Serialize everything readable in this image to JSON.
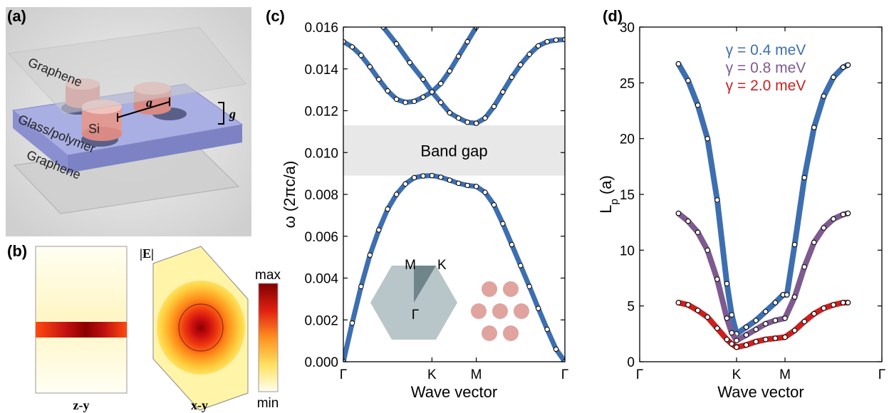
{
  "panels": {
    "a": {
      "label": "(a)",
      "layers": {
        "graphene_top": "Graphene",
        "pillar": "Si",
        "spacer": "Glass/polymer",
        "graphene_bottom": "Graphene",
        "period": "a",
        "gap": "g"
      },
      "colors": {
        "pillar": "#e7a49e",
        "spacer": "#9ea4dc",
        "graphene": "#c8c8c8"
      }
    },
    "b": {
      "label": "(b)",
      "field_label": "|E|",
      "left_view": "z-y",
      "right_view": "x-y",
      "colorbar_max": "max",
      "colorbar_min": "min"
    },
    "c": {
      "label": "(c)",
      "band_gap_text": "Band gap",
      "inset": {
        "bz_points": [
          "M",
          "K",
          "Γ"
        ]
      }
    },
    "d": {
      "label": "(d)"
    }
  },
  "chart_data": [
    {
      "type": "line",
      "panel": "c",
      "ylabel": "ω (2πc/a)",
      "xlabel": "Wave vector",
      "x_ticks": [
        "Γ",
        "K",
        "M",
        "Γ"
      ],
      "x_tick_positions": [
        0,
        1,
        1.5,
        2.5
      ],
      "xlim": [
        0,
        2.5
      ],
      "ylim": [
        0,
        0.016
      ],
      "y_ticks": [
        "0.000",
        "0.002",
        "0.004",
        "0.006",
        "0.008",
        "0.010",
        "0.012",
        "0.014",
        "0.016"
      ],
      "band_gap": [
        0.0089,
        0.0113
      ],
      "series": [
        {
          "values": [
            [
              0,
              0
            ],
            [
              0.1,
              0.00185
            ],
            [
              0.2,
              0.0036
            ],
            [
              0.3,
              0.0051
            ],
            [
              0.4,
              0.0063
            ],
            [
              0.5,
              0.0073
            ],
            [
              0.6,
              0.008
            ],
            [
              0.7,
              0.0085
            ],
            [
              0.8,
              0.0088
            ],
            [
              0.9,
              0.00888
            ],
            [
              1.0,
              0.0089
            ],
            [
              1.1,
              0.00882
            ],
            [
              1.2,
              0.00868
            ],
            [
              1.3,
              0.00853
            ],
            [
              1.4,
              0.00843
            ],
            [
              1.5,
              0.00838
            ],
            [
              1.6,
              0.0081
            ],
            [
              1.7,
              0.0075
            ],
            [
              1.8,
              0.0066
            ],
            [
              1.9,
              0.0056
            ],
            [
              2.0,
              0.0046
            ],
            [
              2.1,
              0.0036
            ],
            [
              2.2,
              0.00255
            ],
            [
              2.3,
              0.00155
            ],
            [
              2.4,
              0.0006
            ],
            [
              2.5,
              0
            ]
          ]
        },
        {
          "values": [
            [
              0,
              0.0153
            ],
            [
              0.1,
              0.01505
            ],
            [
              0.2,
              0.01465
            ],
            [
              0.3,
              0.0141
            ],
            [
              0.4,
              0.0135
            ],
            [
              0.5,
              0.01295
            ],
            [
              0.6,
              0.01255
            ],
            [
              0.7,
              0.0124
            ],
            [
              0.8,
              0.01245
            ],
            [
              0.9,
              0.01265
            ],
            [
              1.0,
              0.0129
            ],
            [
              1.1,
              0.0133
            ],
            [
              1.2,
              0.0139
            ],
            [
              1.3,
              0.0146
            ],
            [
              1.4,
              0.0153
            ],
            [
              1.5,
              0.016
            ]
          ]
        },
        {
          "values": [
            [
              0.45,
              0.016
            ],
            [
              0.6,
              0.0152
            ],
            [
              0.75,
              0.0143
            ],
            [
              0.9,
              0.0135
            ],
            [
              1.0,
              0.0129
            ],
            [
              1.1,
              0.0124
            ],
            [
              1.2,
              0.0119
            ],
            [
              1.3,
              0.01165
            ],
            [
              1.4,
              0.01145
            ],
            [
              1.5,
              0.0114
            ],
            [
              1.6,
              0.01165
            ],
            [
              1.7,
              0.0122
            ],
            [
              1.8,
              0.0129
            ],
            [
              1.9,
              0.0136
            ],
            [
              2.0,
              0.0142
            ],
            [
              2.1,
              0.0147
            ],
            [
              2.2,
              0.0151
            ],
            [
              2.3,
              0.0153
            ],
            [
              2.4,
              0.01538
            ],
            [
              2.5,
              0.0154
            ]
          ]
        }
      ]
    },
    {
      "type": "line",
      "panel": "d",
      "ylabel": "Lp (a)",
      "xlabel": "Wave vector",
      "x_ticks": [
        "Γ",
        "K",
        "M",
        "Γ"
      ],
      "x_tick_positions": [
        0,
        1,
        1.5,
        2.5
      ],
      "xlim": [
        0,
        2.5
      ],
      "ylim": [
        0,
        30
      ],
      "y_ticks": [
        "0",
        "5",
        "10",
        "15",
        "20",
        "25",
        "30"
      ],
      "legend_placement": "top-center",
      "series": [
        {
          "name": "γ = 0.4 meV",
          "color": "#3d6fb0",
          "values": [
            [
              0.4,
              26.7
            ],
            [
              0.5,
              25.2
            ],
            [
              0.6,
              23.0
            ],
            [
              0.7,
              20.0
            ],
            [
              0.8,
              14.5
            ],
            [
              0.9,
              7.0
            ],
            [
              0.95,
              4.2
            ],
            [
              1.0,
              2.5
            ],
            [
              1.1,
              3.1
            ],
            [
              1.2,
              3.7
            ],
            [
              1.3,
              4.5
            ],
            [
              1.4,
              5.3
            ],
            [
              1.48,
              6.0
            ],
            [
              1.52,
              6.0
            ],
            [
              1.6,
              10.5
            ],
            [
              1.7,
              16.5
            ],
            [
              1.8,
              21.0
            ],
            [
              1.9,
              23.8
            ],
            [
              2.0,
              25.5
            ],
            [
              2.1,
              26.4
            ],
            [
              2.15,
              26.6
            ]
          ]
        },
        {
          "name": "γ = 0.8 meV",
          "color": "#7d5a8f",
          "values": [
            [
              0.4,
              13.3
            ],
            [
              0.5,
              12.6
            ],
            [
              0.6,
              11.6
            ],
            [
              0.7,
              10.0
            ],
            [
              0.8,
              7.4
            ],
            [
              0.9,
              3.9
            ],
            [
              0.95,
              2.6
            ],
            [
              1.0,
              1.9
            ],
            [
              1.1,
              2.4
            ],
            [
              1.2,
              2.9
            ],
            [
              1.3,
              3.4
            ],
            [
              1.4,
              3.7
            ],
            [
              1.5,
              3.9
            ],
            [
              1.6,
              5.8
            ],
            [
              1.7,
              8.5
            ],
            [
              1.8,
              10.7
            ],
            [
              1.9,
              12.0
            ],
            [
              2.0,
              12.8
            ],
            [
              2.1,
              13.2
            ],
            [
              2.15,
              13.3
            ]
          ]
        },
        {
          "name": "γ = 2.0 meV",
          "color": "#cc2020",
          "values": [
            [
              0.4,
              5.3
            ],
            [
              0.5,
              5.1
            ],
            [
              0.6,
              4.6
            ],
            [
              0.7,
              4.0
            ],
            [
              0.8,
              3.0
            ],
            [
              0.9,
              2.0
            ],
            [
              0.95,
              1.6
            ],
            [
              1.0,
              1.3
            ],
            [
              1.1,
              1.5
            ],
            [
              1.2,
              1.8
            ],
            [
              1.3,
              2.0
            ],
            [
              1.4,
              2.1
            ],
            [
              1.5,
              2.2
            ],
            [
              1.6,
              2.8
            ],
            [
              1.7,
              3.6
            ],
            [
              1.8,
              4.3
            ],
            [
              1.9,
              4.8
            ],
            [
              2.0,
              5.1
            ],
            [
              2.1,
              5.3
            ],
            [
              2.15,
              5.3
            ]
          ]
        }
      ]
    }
  ]
}
